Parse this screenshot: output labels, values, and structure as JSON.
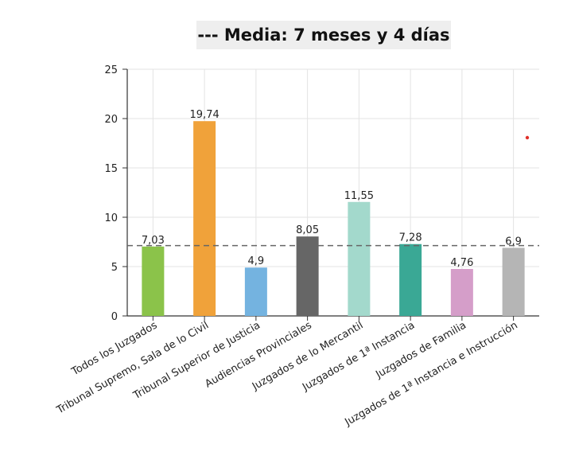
{
  "chart_data": {
    "type": "bar",
    "title": "--- Media: 7 meses y 4 días",
    "xlabel": "",
    "ylabel": "",
    "categories": [
      "Todos los Juzgados",
      "Tribunal Supremo, Sala de lo Civil",
      "Tribunal Superior de Justicia",
      "Audiencias Provinciales",
      "Juzgados de lo Mercantil",
      "Juzgados de 1ª Instancia",
      "Juzgados de Familia",
      "Juzgados de 1ª Instancia e Instrucción"
    ],
    "values": [
      7.03,
      19.74,
      4.9,
      8.05,
      11.55,
      7.28,
      4.76,
      6.9
    ],
    "value_labels": [
      "7,03",
      "19,74",
      "4,9",
      "8,05",
      "11,55",
      "7,28",
      "4,76",
      "6,9"
    ],
    "colors": [
      "#8bc34a",
      "#f0a23a",
      "#74b3e0",
      "#666666",
      "#a3d9cc",
      "#3aa895",
      "#d59ec9",
      "#b5b5b5"
    ],
    "ylim": [
      0,
      25
    ],
    "yticks": [
      0,
      5,
      10,
      15,
      20,
      25
    ],
    "mean_line": 7.13,
    "grid": true,
    "legend": "none"
  }
}
